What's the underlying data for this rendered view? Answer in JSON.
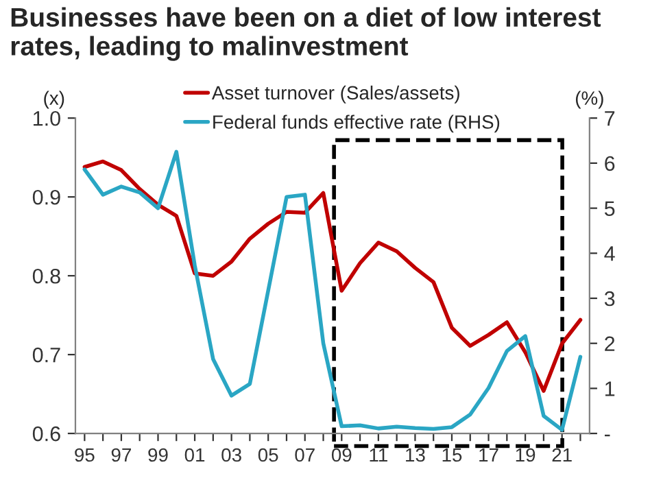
{
  "chart_data": {
    "type": "line",
    "title": "Businesses have been on a diet of low interest rates, leading to malinvestment",
    "ylabel": "(x)",
    "y2label": "(%)",
    "x": [
      1995,
      1996,
      1997,
      1998,
      1999,
      2000,
      2001,
      2002,
      2003,
      2004,
      2005,
      2006,
      2007,
      2008,
      2009,
      2010,
      2011,
      2012,
      2013,
      2014,
      2015,
      2016,
      2017,
      2018,
      2019,
      2020,
      2021,
      2022
    ],
    "series": [
      {
        "name": "Asset turnover (Sales/assets)",
        "color": "#c00000",
        "values": [
          0.938,
          0.945,
          0.934,
          0.91,
          0.89,
          0.876,
          0.803,
          0.8,
          0.818,
          0.847,
          0.866,
          0.881,
          0.88,
          0.905,
          0.781,
          0.816,
          0.842,
          0.831,
          0.81,
          0.792,
          0.734,
          0.711,
          0.725,
          0.741,
          0.703,
          0.654,
          0.714,
          0.744
        ]
      },
      {
        "name": "Federal funds effective rate (RHS)",
        "color": "#2aa6c4",
        "axis": "y2",
        "values": [
          5.86,
          5.3,
          5.48,
          5.35,
          5.0,
          6.25,
          3.73,
          1.65,
          0.84,
          1.1,
          3.17,
          5.25,
          5.3,
          2.0,
          0.16,
          0.18,
          0.11,
          0.15,
          0.12,
          0.1,
          0.14,
          0.42,
          1.01,
          1.83,
          2.16,
          0.39,
          0.08,
          1.7
        ]
      }
    ],
    "xlim": [
      1994.5,
      2022.5
    ],
    "xticks": [
      {
        "value": 1995,
        "label": "95"
      },
      {
        "value": 1996,
        "label": null
      },
      {
        "value": 1997,
        "label": "97"
      },
      {
        "value": 1998,
        "label": null
      },
      {
        "value": 1999,
        "label": "99"
      },
      {
        "value": 2000,
        "label": null
      },
      {
        "value": 2001,
        "label": "01"
      },
      {
        "value": 2002,
        "label": null
      },
      {
        "value": 2003,
        "label": "03"
      },
      {
        "value": 2004,
        "label": null
      },
      {
        "value": 2005,
        "label": "05"
      },
      {
        "value": 2006,
        "label": null
      },
      {
        "value": 2007,
        "label": "07"
      },
      {
        "value": 2008,
        "label": null
      },
      {
        "value": 2009,
        "label": "09"
      },
      {
        "value": 2010,
        "label": null
      },
      {
        "value": 2011,
        "label": "11"
      },
      {
        "value": 2012,
        "label": null
      },
      {
        "value": 2013,
        "label": "13"
      },
      {
        "value": 2014,
        "label": null
      },
      {
        "value": 2015,
        "label": "15"
      },
      {
        "value": 2016,
        "label": null
      },
      {
        "value": 2017,
        "label": "17"
      },
      {
        "value": 2018,
        "label": null
      },
      {
        "value": 2019,
        "label": "19"
      },
      {
        "value": 2020,
        "label": null
      },
      {
        "value": 2021,
        "label": "21"
      },
      {
        "value": 2022,
        "label": null
      }
    ],
    "ylim": [
      0.6,
      1.0
    ],
    "yticks": [
      0.6,
      0.7,
      0.8,
      0.9,
      {
        "value": 1.0,
        "label": "1.0"
      }
    ],
    "y2lim": [
      0,
      7
    ],
    "y2ticks": [
      {
        "value": 0,
        "label": "-"
      },
      1,
      2,
      3,
      4,
      5,
      6,
      7
    ],
    "legend": "top",
    "grid": false,
    "marker": "none",
    "line_style": "solid"
  }
}
